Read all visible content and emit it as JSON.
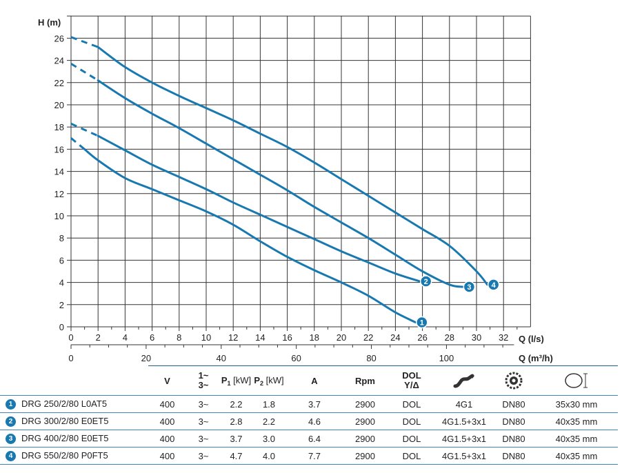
{
  "chart_data": {
    "type": "line",
    "y_axis_label": "H (m)",
    "x_axis_label": "Q (l/s)",
    "x2_axis_label": "Q (m³/h)",
    "xlim": [
      0,
      34
    ],
    "ylim": [
      0,
      28
    ],
    "x_ticks": [
      0,
      2,
      4,
      6,
      8,
      10,
      12,
      14,
      16,
      18,
      20,
      22,
      24,
      26,
      28,
      30,
      32
    ],
    "y_ticks": [
      0,
      2,
      4,
      6,
      8,
      10,
      12,
      14,
      16,
      18,
      20,
      22,
      24,
      26
    ],
    "x2_ticks": [
      0,
      20,
      40,
      60,
      80,
      100
    ],
    "grid": true,
    "line_color": "#1878b0",
    "series": [
      {
        "name": "1",
        "dashed": [
          [
            0,
            17
          ],
          [
            1,
            16
          ]
        ],
        "values": [
          [
            1,
            16
          ],
          [
            2,
            15
          ],
          [
            4,
            13.4
          ],
          [
            6,
            12.4
          ],
          [
            8,
            11.4
          ],
          [
            10,
            10.4
          ],
          [
            12,
            9.2
          ],
          [
            14,
            7.7
          ],
          [
            16,
            6.3
          ],
          [
            18,
            5.1
          ],
          [
            20,
            4
          ],
          [
            22,
            2.8
          ],
          [
            24,
            1.3
          ],
          [
            25.5,
            0.4
          ]
        ]
      },
      {
        "name": "2",
        "dashed": [
          [
            0,
            18.3
          ],
          [
            2,
            17.2
          ]
        ],
        "values": [
          [
            2,
            17.2
          ],
          [
            4,
            15.9
          ],
          [
            6,
            14.6
          ],
          [
            8,
            13.5
          ],
          [
            10,
            12.4
          ],
          [
            12,
            11.2
          ],
          [
            14,
            10.1
          ],
          [
            16,
            9
          ],
          [
            18,
            7.9
          ],
          [
            20,
            6.8
          ],
          [
            22,
            5.8
          ],
          [
            24,
            4.8
          ],
          [
            25.8,
            4.1
          ]
        ]
      },
      {
        "name": "3",
        "dashed": [
          [
            0,
            23.7
          ],
          [
            2,
            22.2
          ]
        ],
        "values": [
          [
            2,
            22.2
          ],
          [
            4,
            20.6
          ],
          [
            6,
            19.2
          ],
          [
            8,
            17.9
          ],
          [
            10,
            16.5
          ],
          [
            12,
            15.1
          ],
          [
            14,
            13.7
          ],
          [
            16,
            12.3
          ],
          [
            18,
            10.8
          ],
          [
            20,
            9.4
          ],
          [
            22,
            8
          ],
          [
            24,
            6.5
          ],
          [
            26,
            5
          ],
          [
            28,
            3.8
          ],
          [
            29,
            3.6
          ]
        ]
      },
      {
        "name": "4",
        "dashed": [
          [
            0,
            26.1
          ],
          [
            2,
            25.2
          ]
        ],
        "values": [
          [
            2,
            25.2
          ],
          [
            4,
            23.4
          ],
          [
            6,
            22
          ],
          [
            8,
            20.8
          ],
          [
            10,
            19.7
          ],
          [
            12,
            18.6
          ],
          [
            14,
            17.4
          ],
          [
            16,
            16.2
          ],
          [
            18,
            14.8
          ],
          [
            20,
            13.3
          ],
          [
            22,
            11.8
          ],
          [
            24,
            10.3
          ],
          [
            26,
            8.8
          ],
          [
            28,
            7.3
          ],
          [
            30,
            5
          ],
          [
            30.8,
            3.8
          ]
        ]
      }
    ]
  },
  "table": {
    "headers": {
      "v": "V",
      "phase_top": "1~",
      "phase_bottom": "3~",
      "p1": "P",
      "p1_sub": "1",
      "p1_unit": "[kW]",
      "p2": "P",
      "p2_sub": "2",
      "p2_unit": "[kW]",
      "a": "A",
      "rpm": "Rpm",
      "dol_top": "DOL",
      "dol_bottom": "Y/Δ"
    },
    "icons": {
      "cable": "cable-icon",
      "impeller": "impeller-icon",
      "passage": "free-passage-icon"
    },
    "rows": [
      {
        "num": "1",
        "model": "DRG 250/2/80 L0AT5",
        "v": "400",
        "phase": "3~",
        "p1": "2.2",
        "p2": "1.8",
        "a": "3.7",
        "rpm": "2900",
        "start": "DOL",
        "cable": "4G1",
        "outlet": "DN80",
        "passage": "35x30 mm"
      },
      {
        "num": "2",
        "model": "DRG 300/2/80 E0ET5",
        "v": "400",
        "phase": "3~",
        "p1": "2.8",
        "p2": "2.2",
        "a": "4.6",
        "rpm": "2900",
        "start": "DOL",
        "cable": "4G1.5+3x1",
        "outlet": "DN80",
        "passage": "40x35  mm"
      },
      {
        "num": "3",
        "model": "DRG 400/2/80 E0ET5",
        "v": "400",
        "phase": "3~",
        "p1": "3.7",
        "p2": "3.0",
        "a": "6.4",
        "rpm": "2900",
        "start": "DOL",
        "cable": "4G1.5+3x1",
        "outlet": "DN80",
        "passage": "40x35 mm"
      },
      {
        "num": "4",
        "model": "DRG 550/2/80 P0FT5",
        "v": "400",
        "phase": "3~",
        "p1": "4.7",
        "p2": "4.0",
        "a": "7.7",
        "rpm": "2900",
        "start": "DOL",
        "cable": "4G1.5+3x1",
        "outlet": "DN80",
        "passage": "40x35 mm"
      }
    ]
  }
}
